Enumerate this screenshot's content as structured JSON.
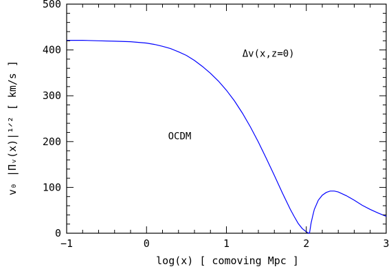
{
  "chart_data": {
    "type": "line",
    "title": "",
    "xlabel": "log(x)   [ comoving Mpc ]",
    "ylabel": "v₀ |Πᵥ(x)|¹ᐟ²  [ km/s ]",
    "xlim": [
      -1,
      3
    ],
    "ylim": [
      0,
      500
    ],
    "xticks": [
      -1,
      0,
      1,
      2,
      3
    ],
    "xtick_labels": [
      "−1",
      "0",
      "1",
      "2",
      "3"
    ],
    "yticks": [
      0,
      100,
      200,
      300,
      400,
      500
    ],
    "ytick_labels": [
      "0",
      "100",
      "200",
      "300",
      "400",
      "500"
    ],
    "grid": false,
    "series_color": "#0000ff",
    "annotations": [
      {
        "text": "Δv(x,z=0)",
        "x": 1.2,
        "y": 385
      },
      {
        "text": "OCDM",
        "x": 0.27,
        "y": 205
      }
    ],
    "series": [
      {
        "name": "",
        "x": [
          -1.0,
          -0.8,
          -0.6,
          -0.4,
          -0.2,
          0.0,
          0.1,
          0.2,
          0.3,
          0.4,
          0.5,
          0.6,
          0.7,
          0.8,
          0.9,
          1.0,
          1.1,
          1.2,
          1.3,
          1.4,
          1.5,
          1.6,
          1.7,
          1.8,
          1.85,
          1.9,
          1.95,
          2.0,
          2.02,
          2.04,
          2.06,
          2.08,
          2.1,
          2.15,
          2.2,
          2.25,
          2.3,
          2.35,
          2.4,
          2.5,
          2.6,
          2.7,
          2.8,
          2.9,
          3.0
        ],
        "y": [
          421,
          421,
          420,
          419,
          418,
          415,
          412,
          408,
          403,
          396,
          388,
          377,
          364,
          349,
          332,
          312,
          289,
          262,
          232,
          199,
          163,
          126,
          88,
          52,
          36,
          21,
          10,
          3,
          1,
          0,
          22,
          38,
          52,
          72,
          83,
          89,
          92,
          92,
          90,
          82,
          72,
          61,
          52,
          44,
          37
        ]
      }
    ]
  }
}
